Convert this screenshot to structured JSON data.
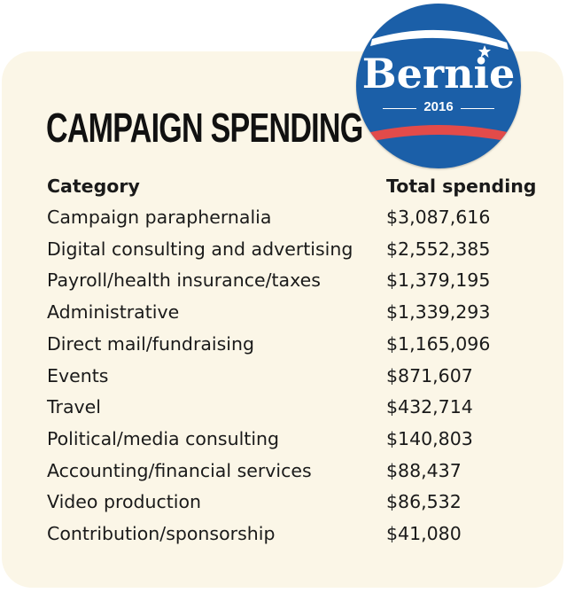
{
  "title": "CAMPAIGN SPENDING",
  "badge": {
    "name": "Bernie",
    "year": "2016",
    "color": "#1b5fa8",
    "stripe_color": "#e24b4a"
  },
  "colors": {
    "card_bg": "#fbf6e7",
    "text": "#1a1a1a"
  },
  "chart_data": {
    "type": "table",
    "title": "CAMPAIGN SPENDING",
    "columns": [
      "Category",
      "Total spending"
    ],
    "rows": [
      [
        "Campaign paraphernalia",
        "$3,087,616"
      ],
      [
        "Digital consulting and advertising",
        "$2,552,385"
      ],
      [
        "Payroll/health insurance/taxes",
        "$1,379,195"
      ],
      [
        "Administrative",
        "$1,339,293"
      ],
      [
        "Direct mail/fundraising",
        "$1,165,096"
      ],
      [
        "Events",
        "$871,607"
      ],
      [
        "Travel",
        "$432,714"
      ],
      [
        "Political/media consulting",
        "$140,803"
      ],
      [
        "Accounting/financial services",
        "$88,437"
      ],
      [
        "Video production",
        "$86,532"
      ],
      [
        "Contribution/sponsorship",
        "$41,080"
      ]
    ]
  }
}
